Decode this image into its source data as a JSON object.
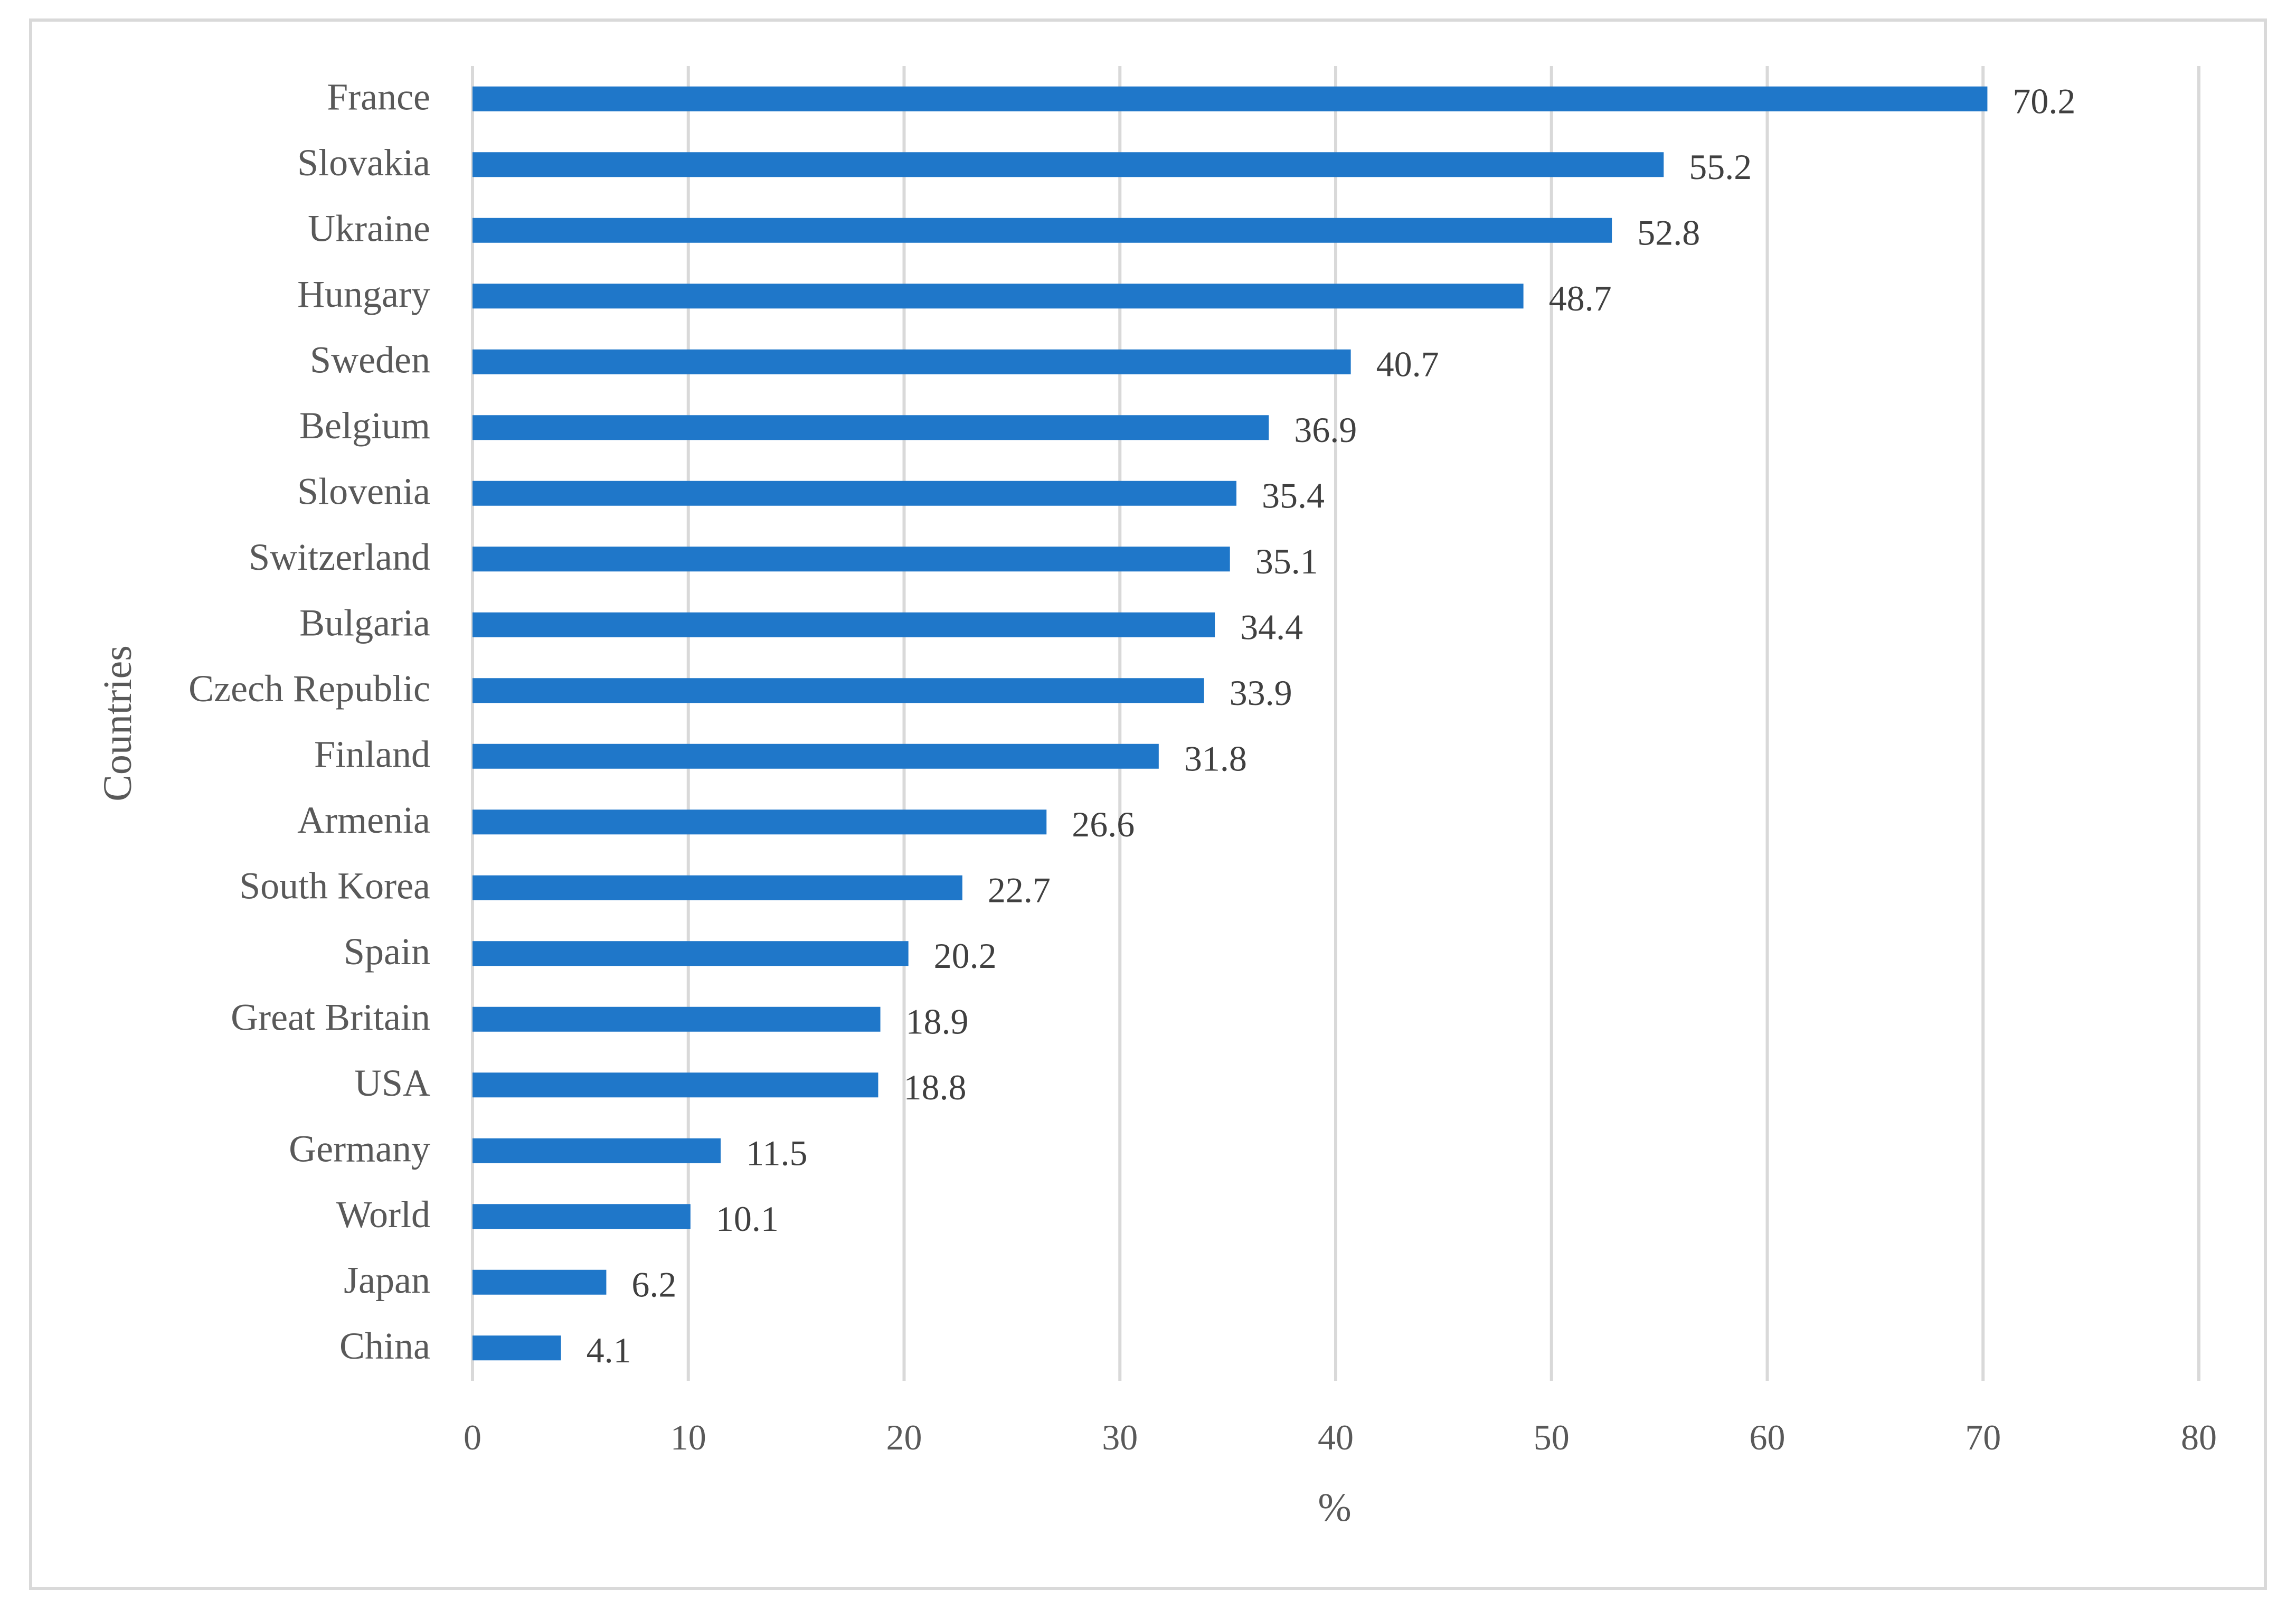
{
  "chart_data": {
    "type": "bar",
    "orientation": "horizontal",
    "title": "",
    "xlabel": "%",
    "ylabel": "Countries",
    "xlim": [
      0,
      80
    ],
    "xticks": [
      0,
      10,
      20,
      30,
      40,
      50,
      60,
      70,
      80
    ],
    "grid": "vertical",
    "bar_color": "#1F77C9",
    "categories": [
      "France",
      "Slovakia",
      "Ukraine",
      "Hungary",
      "Sweden",
      "Belgium",
      "Slovenia",
      "Switzerland",
      "Bulgaria",
      "Czech Republic",
      "Finland",
      "Armenia",
      "South Korea",
      "Spain",
      "Great Britain",
      "USA",
      "Germany",
      "World",
      "Japan",
      "China"
    ],
    "values": [
      70.2,
      55.2,
      52.8,
      48.7,
      40.7,
      36.9,
      35.4,
      35.1,
      34.4,
      33.9,
      31.8,
      26.6,
      22.7,
      20.2,
      18.9,
      18.8,
      11.5,
      10.1,
      6.2,
      4.1
    ],
    "value_labels": [
      "70.2",
      "55.2",
      "52.8",
      "48.7",
      "40.7",
      "36.9",
      "35.4",
      "35.1",
      "34.4",
      "33.9",
      "31.8",
      "26.6",
      "22.7",
      "20.2",
      "18.9",
      "18.8",
      "11.5",
      "10.1",
      "6.2",
      "4.1"
    ]
  }
}
